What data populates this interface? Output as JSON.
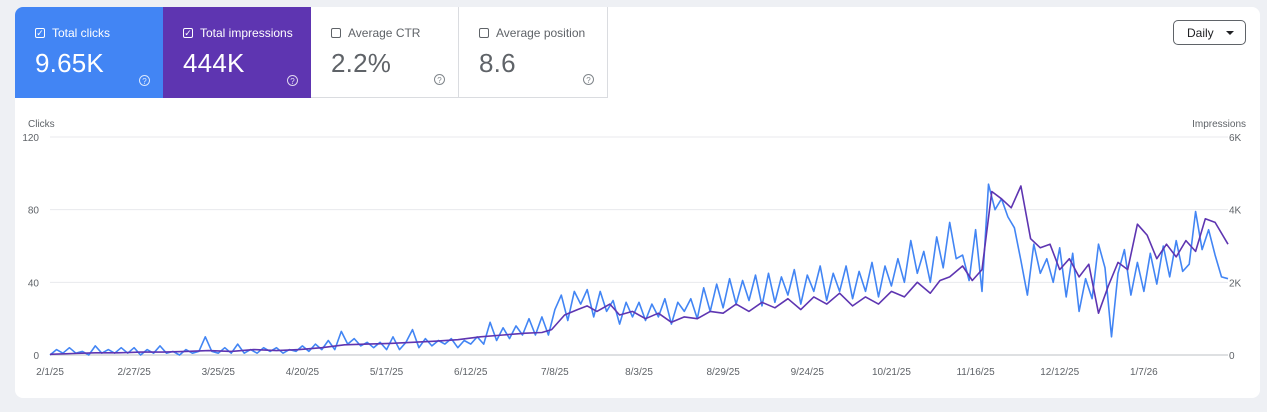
{
  "metrics": [
    {
      "label": "Total clicks",
      "value": "9.65K",
      "checked": true,
      "color": "#4285f4"
    },
    {
      "label": "Total impressions",
      "value": "444K",
      "checked": true,
      "color": "#5e35b1"
    },
    {
      "label": "Average CTR",
      "value": "2.2%",
      "checked": false,
      "color": "#ffffff"
    },
    {
      "label": "Average position",
      "value": "8.6",
      "checked": false,
      "color": "#ffffff"
    }
  ],
  "help_glyph": "?",
  "check_glyph": "✓",
  "dropdown": {
    "label": "Daily"
  },
  "chart_data": {
    "type": "line",
    "x_start": "2025-02-01",
    "x_end": "2026-01-31",
    "xtick_labels": [
      "2/1/25",
      "2/27/25",
      "3/25/25",
      "4/20/25",
      "5/17/25",
      "6/12/25",
      "7/8/25",
      "8/3/25",
      "8/29/25",
      "9/24/25",
      "10/21/25",
      "11/16/25",
      "12/12/25",
      "1/7/26"
    ],
    "ylabel_left": "Clicks",
    "ylabel_right": "Impressions",
    "left_axis": {
      "min": 0,
      "max": 120,
      "ticks": [
        0,
        40,
        80,
        120
      ],
      "tick_labels": [
        "0",
        "40",
        "80",
        "120"
      ]
    },
    "right_axis": {
      "min": 0,
      "max": 6000,
      "ticks": [
        0,
        2000,
        4000,
        6000
      ],
      "tick_labels": [
        "0",
        "2K",
        "4K",
        "6K"
      ]
    },
    "grid": true,
    "series": [
      {
        "name": "Clicks",
        "axis": "left",
        "color": "#4285f4",
        "points": [
          [
            "2025-02-01",
            0
          ],
          [
            "2025-02-03",
            3
          ],
          [
            "2025-02-05",
            1
          ],
          [
            "2025-02-07",
            4
          ],
          [
            "2025-02-09",
            1
          ],
          [
            "2025-02-11",
            2
          ],
          [
            "2025-02-13",
            0
          ],
          [
            "2025-02-15",
            5
          ],
          [
            "2025-02-17",
            1
          ],
          [
            "2025-02-19",
            3
          ],
          [
            "2025-02-21",
            1
          ],
          [
            "2025-02-23",
            4
          ],
          [
            "2025-02-25",
            1
          ],
          [
            "2025-02-27",
            4
          ],
          [
            "2025-03-01",
            0
          ],
          [
            "2025-03-03",
            3
          ],
          [
            "2025-03-05",
            1
          ],
          [
            "2025-03-07",
            5
          ],
          [
            "2025-03-09",
            1
          ],
          [
            "2025-03-11",
            2
          ],
          [
            "2025-03-13",
            0
          ],
          [
            "2025-03-15",
            3
          ],
          [
            "2025-03-17",
            1
          ],
          [
            "2025-03-19",
            2
          ],
          [
            "2025-03-21",
            10
          ],
          [
            "2025-03-23",
            2
          ],
          [
            "2025-03-25",
            1
          ],
          [
            "2025-03-27",
            4
          ],
          [
            "2025-03-29",
            1
          ],
          [
            "2025-03-31",
            6
          ],
          [
            "2025-04-02",
            1
          ],
          [
            "2025-04-04",
            3
          ],
          [
            "2025-04-06",
            1
          ],
          [
            "2025-04-08",
            4
          ],
          [
            "2025-04-10",
            2
          ],
          [
            "2025-04-12",
            4
          ],
          [
            "2025-04-14",
            1
          ],
          [
            "2025-04-16",
            3
          ],
          [
            "2025-04-18",
            2
          ],
          [
            "2025-04-20",
            5
          ],
          [
            "2025-04-22",
            2
          ],
          [
            "2025-04-24",
            6
          ],
          [
            "2025-04-26",
            3
          ],
          [
            "2025-04-28",
            8
          ],
          [
            "2025-04-30",
            3
          ],
          [
            "2025-05-02",
            13
          ],
          [
            "2025-05-04",
            6
          ],
          [
            "2025-05-06",
            9
          ],
          [
            "2025-05-08",
            5
          ],
          [
            "2025-05-10",
            7
          ],
          [
            "2025-05-12",
            4
          ],
          [
            "2025-05-14",
            7
          ],
          [
            "2025-05-16",
            3
          ],
          [
            "2025-05-18",
            10
          ],
          [
            "2025-05-20",
            3
          ],
          [
            "2025-05-22",
            7
          ],
          [
            "2025-05-24",
            14
          ],
          [
            "2025-05-26",
            4
          ],
          [
            "2025-05-28",
            9
          ],
          [
            "2025-05-30",
            5
          ],
          [
            "2025-06-01",
            8
          ],
          [
            "2025-06-03",
            6
          ],
          [
            "2025-06-05",
            9
          ],
          [
            "2025-06-07",
            4
          ],
          [
            "2025-06-09",
            8
          ],
          [
            "2025-06-11",
            6
          ],
          [
            "2025-06-13",
            10
          ],
          [
            "2025-06-15",
            6
          ],
          [
            "2025-06-17",
            18
          ],
          [
            "2025-06-19",
            8
          ],
          [
            "2025-06-21",
            15
          ],
          [
            "2025-06-23",
            9
          ],
          [
            "2025-06-25",
            16
          ],
          [
            "2025-06-27",
            11
          ],
          [
            "2025-06-29",
            20
          ],
          [
            "2025-07-01",
            11
          ],
          [
            "2025-07-03",
            21
          ],
          [
            "2025-07-05",
            11
          ],
          [
            "2025-07-07",
            25
          ],
          [
            "2025-07-09",
            33
          ],
          [
            "2025-07-11",
            19
          ],
          [
            "2025-07-13",
            35
          ],
          [
            "2025-07-15",
            28
          ],
          [
            "2025-07-17",
            36
          ],
          [
            "2025-07-19",
            21
          ],
          [
            "2025-07-21",
            35
          ],
          [
            "2025-07-23",
            24
          ],
          [
            "2025-07-25",
            30
          ],
          [
            "2025-07-27",
            17
          ],
          [
            "2025-07-29",
            29
          ],
          [
            "2025-07-31",
            21
          ],
          [
            "2025-08-02",
            29
          ],
          [
            "2025-08-04",
            19
          ],
          [
            "2025-08-06",
            28
          ],
          [
            "2025-08-08",
            21
          ],
          [
            "2025-08-10",
            31
          ],
          [
            "2025-08-12",
            17
          ],
          [
            "2025-08-14",
            29
          ],
          [
            "2025-08-16",
            24
          ],
          [
            "2025-08-18",
            31
          ],
          [
            "2025-08-20",
            20
          ],
          [
            "2025-08-22",
            37
          ],
          [
            "2025-08-24",
            24
          ],
          [
            "2025-08-26",
            39
          ],
          [
            "2025-08-28",
            26
          ],
          [
            "2025-08-30",
            42
          ],
          [
            "2025-09-01",
            28
          ],
          [
            "2025-09-03",
            41
          ],
          [
            "2025-09-05",
            30
          ],
          [
            "2025-09-07",
            44
          ],
          [
            "2025-09-09",
            27
          ],
          [
            "2025-09-11",
            45
          ],
          [
            "2025-09-13",
            29
          ],
          [
            "2025-09-15",
            43
          ],
          [
            "2025-09-17",
            33
          ],
          [
            "2025-09-19",
            47
          ],
          [
            "2025-09-21",
            28
          ],
          [
            "2025-09-23",
            44
          ],
          [
            "2025-09-25",
            35
          ],
          [
            "2025-09-27",
            49
          ],
          [
            "2025-09-29",
            30
          ],
          [
            "2025-10-01",
            45
          ],
          [
            "2025-10-03",
            35
          ],
          [
            "2025-10-05",
            49
          ],
          [
            "2025-10-07",
            31
          ],
          [
            "2025-10-09",
            46
          ],
          [
            "2025-10-11",
            35
          ],
          [
            "2025-10-13",
            51
          ],
          [
            "2025-10-15",
            32
          ],
          [
            "2025-10-17",
            49
          ],
          [
            "2025-10-19",
            38
          ],
          [
            "2025-10-21",
            53
          ],
          [
            "2025-10-23",
            40
          ],
          [
            "2025-10-25",
            63
          ],
          [
            "2025-10-27",
            45
          ],
          [
            "2025-10-29",
            57
          ],
          [
            "2025-10-31",
            40
          ],
          [
            "2025-11-02",
            65
          ],
          [
            "2025-11-04",
            48
          ],
          [
            "2025-11-06",
            73
          ],
          [
            "2025-11-08",
            53
          ],
          [
            "2025-11-10",
            55
          ],
          [
            "2025-11-12",
            41
          ],
          [
            "2025-11-14",
            69
          ],
          [
            "2025-11-16",
            35
          ],
          [
            "2025-11-18",
            94
          ],
          [
            "2025-11-20",
            80
          ],
          [
            "2025-11-22",
            86
          ],
          [
            "2025-11-24",
            76
          ],
          [
            "2025-11-26",
            70
          ],
          [
            "2025-11-28",
            52
          ],
          [
            "2025-11-30",
            33
          ],
          [
            "2025-12-02",
            61
          ],
          [
            "2025-12-04",
            45
          ],
          [
            "2025-12-06",
            53
          ],
          [
            "2025-12-08",
            40
          ],
          [
            "2025-12-10",
            59
          ],
          [
            "2025-12-12",
            32
          ],
          [
            "2025-12-14",
            56
          ],
          [
            "2025-12-16",
            24
          ],
          [
            "2025-12-18",
            42
          ],
          [
            "2025-12-20",
            31
          ],
          [
            "2025-12-22",
            61
          ],
          [
            "2025-12-24",
            48
          ],
          [
            "2025-12-26",
            10
          ],
          [
            "2025-12-28",
            45
          ],
          [
            "2025-12-30",
            58
          ],
          [
            "2026-01-01",
            33
          ],
          [
            "2026-01-03",
            51
          ],
          [
            "2026-01-05",
            35
          ],
          [
            "2026-01-07",
            56
          ],
          [
            "2026-01-09",
            39
          ],
          [
            "2026-01-11",
            60
          ],
          [
            "2026-01-13",
            43
          ],
          [
            "2026-01-15",
            63
          ],
          [
            "2026-01-17",
            46
          ],
          [
            "2026-01-19",
            50
          ],
          [
            "2026-01-21",
            79
          ],
          [
            "2026-01-23",
            58
          ],
          [
            "2026-01-25",
            69
          ],
          [
            "2026-01-27",
            55
          ],
          [
            "2026-01-29",
            43
          ],
          [
            "2026-01-31",
            42
          ]
        ]
      },
      {
        "name": "Impressions",
        "axis": "right",
        "color": "#5e35b1",
        "points": [
          [
            "2025-02-01",
            20
          ],
          [
            "2025-02-08",
            40
          ],
          [
            "2025-02-15",
            60
          ],
          [
            "2025-02-22",
            60
          ],
          [
            "2025-03-01",
            80
          ],
          [
            "2025-03-08",
            80
          ],
          [
            "2025-03-15",
            100
          ],
          [
            "2025-03-22",
            120
          ],
          [
            "2025-03-29",
            100
          ],
          [
            "2025-04-05",
            150
          ],
          [
            "2025-04-12",
            120
          ],
          [
            "2025-04-19",
            150
          ],
          [
            "2025-04-26",
            200
          ],
          [
            "2025-05-03",
            280
          ],
          [
            "2025-05-10",
            300
          ],
          [
            "2025-05-17",
            320
          ],
          [
            "2025-05-24",
            350
          ],
          [
            "2025-05-31",
            380
          ],
          [
            "2025-06-07",
            420
          ],
          [
            "2025-06-14",
            500
          ],
          [
            "2025-06-21",
            550
          ],
          [
            "2025-06-28",
            600
          ],
          [
            "2025-07-03",
            620
          ],
          [
            "2025-07-06",
            700
          ],
          [
            "2025-07-10",
            1100
          ],
          [
            "2025-07-14",
            1250
          ],
          [
            "2025-07-17",
            1350
          ],
          [
            "2025-07-20",
            1200
          ],
          [
            "2025-07-24",
            1400
          ],
          [
            "2025-07-27",
            1100
          ],
          [
            "2025-07-31",
            1200
          ],
          [
            "2025-08-04",
            1000
          ],
          [
            "2025-08-08",
            1150
          ],
          [
            "2025-08-12",
            900
          ],
          [
            "2025-08-16",
            1050
          ],
          [
            "2025-08-20",
            1000
          ],
          [
            "2025-08-24",
            1200
          ],
          [
            "2025-08-28",
            1150
          ],
          [
            "2025-09-01",
            1400
          ],
          [
            "2025-09-05",
            1200
          ],
          [
            "2025-09-09",
            1450
          ],
          [
            "2025-09-13",
            1300
          ],
          [
            "2025-09-17",
            1550
          ],
          [
            "2025-09-21",
            1250
          ],
          [
            "2025-09-25",
            1600
          ],
          [
            "2025-09-29",
            1400
          ],
          [
            "2025-10-03",
            1700
          ],
          [
            "2025-10-07",
            1350
          ],
          [
            "2025-10-11",
            1600
          ],
          [
            "2025-10-15",
            1400
          ],
          [
            "2025-10-19",
            1750
          ],
          [
            "2025-10-23",
            1600
          ],
          [
            "2025-10-27",
            2000
          ],
          [
            "2025-10-31",
            1700
          ],
          [
            "2025-11-03",
            2050
          ],
          [
            "2025-11-06",
            2150
          ],
          [
            "2025-11-10",
            2450
          ],
          [
            "2025-11-13",
            2050
          ],
          [
            "2025-11-16",
            2350
          ],
          [
            "2025-11-19",
            4500
          ],
          [
            "2025-11-22",
            4300
          ],
          [
            "2025-11-25",
            4050
          ],
          [
            "2025-11-28",
            4650
          ],
          [
            "2025-12-01",
            3200
          ],
          [
            "2025-12-04",
            2950
          ],
          [
            "2025-12-07",
            3050
          ],
          [
            "2025-12-10",
            2350
          ],
          [
            "2025-12-13",
            2650
          ],
          [
            "2025-12-16",
            2150
          ],
          [
            "2025-12-19",
            2500
          ],
          [
            "2025-12-22",
            1150
          ],
          [
            "2025-12-25",
            1900
          ],
          [
            "2025-12-28",
            2550
          ],
          [
            "2025-12-31",
            2350
          ],
          [
            "2026-01-03",
            3600
          ],
          [
            "2026-01-06",
            3300
          ],
          [
            "2026-01-09",
            2650
          ],
          [
            "2026-01-12",
            3050
          ],
          [
            "2026-01-15",
            2700
          ],
          [
            "2026-01-18",
            3150
          ],
          [
            "2026-01-21",
            2850
          ],
          [
            "2026-01-24",
            3750
          ],
          [
            "2026-01-27",
            3650
          ],
          [
            "2026-01-31",
            3050
          ]
        ]
      }
    ]
  }
}
